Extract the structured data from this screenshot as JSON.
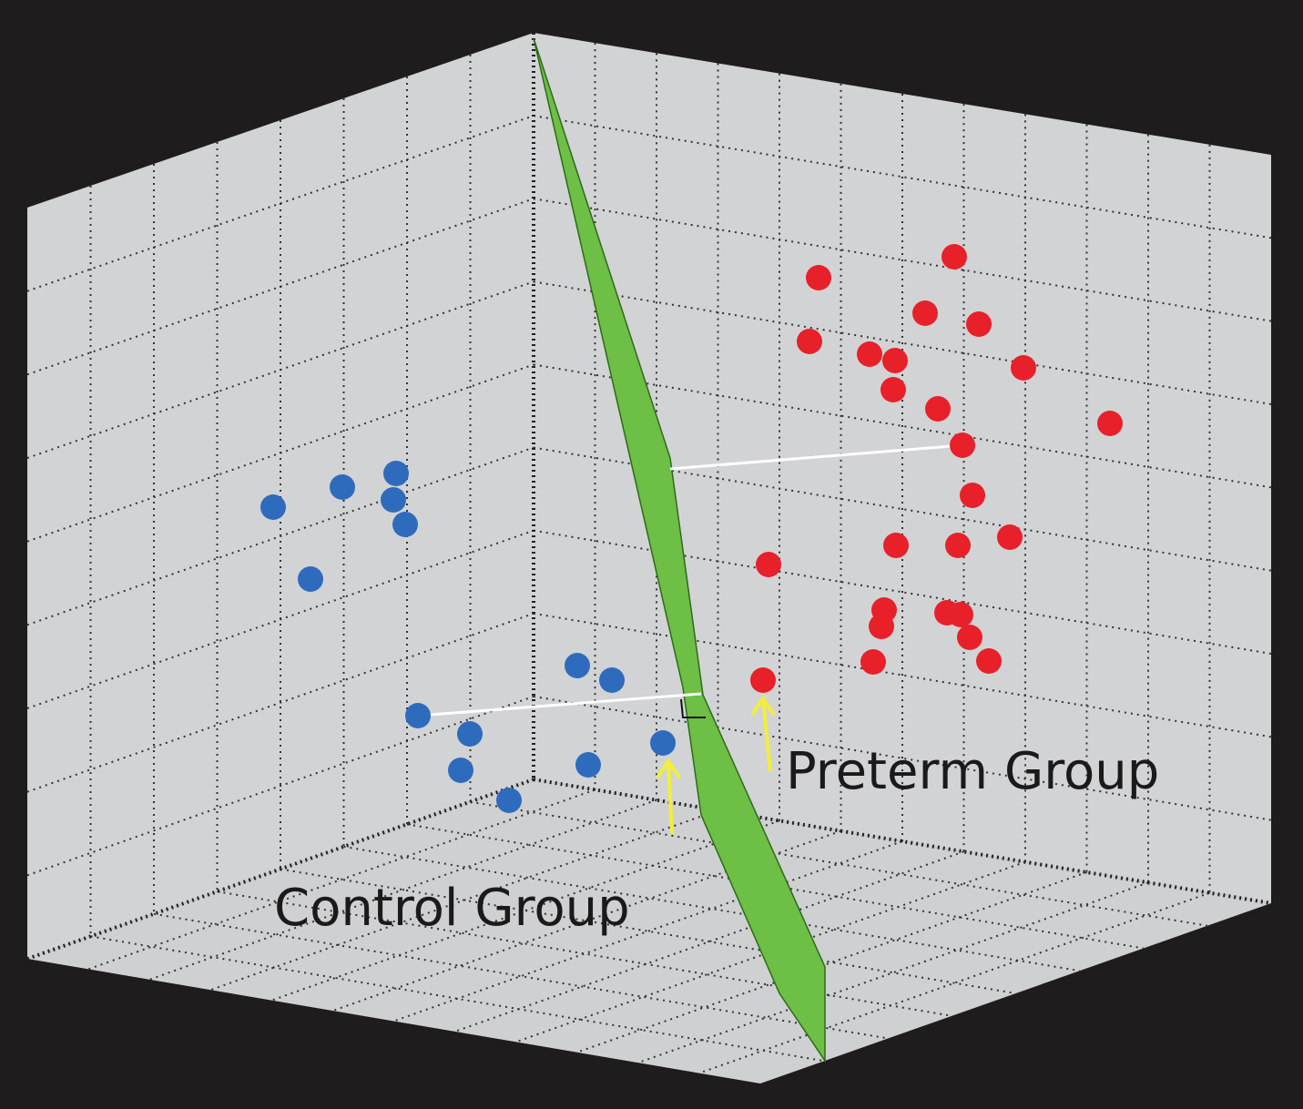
{
  "colors": {
    "background": "#1f1c1d",
    "wall": "#d2d3d5",
    "floor": "#cfd0d2",
    "control_points": "#2f6bbd",
    "preterm_points": "#e8202a",
    "hyperplane": "#6dbf45",
    "margin_lines": "#ffffff",
    "arrows": "#f2ee3a"
  },
  "chart_data": {
    "type": "scatter",
    "title": "",
    "annotations": [
      "Preterm Group",
      "Control Group"
    ],
    "series": [
      {
        "name": "Control Group",
        "color": "#2f6bbd",
        "points": [
          [
            300,
            557
          ],
          [
            376,
            535
          ],
          [
            435,
            520
          ],
          [
            432,
            549
          ],
          [
            445,
            576
          ],
          [
            341,
            636
          ],
          [
            634,
            731
          ],
          [
            672,
            747
          ],
          [
            459,
            786
          ],
          [
            516,
            806
          ],
          [
            506,
            846
          ],
          [
            559,
            879
          ],
          [
            646,
            840
          ],
          [
            728,
            816
          ]
        ]
      },
      {
        "name": "Preterm Group",
        "color": "#e8202a",
        "points": [
          [
            1048,
            282
          ],
          [
            899,
            305
          ],
          [
            1016,
            344
          ],
          [
            1075,
            356
          ],
          [
            889,
            375
          ],
          [
            955,
            389
          ],
          [
            983,
            396
          ],
          [
            1124,
            404
          ],
          [
            981,
            428
          ],
          [
            1030,
            449
          ],
          [
            1219,
            465
          ],
          [
            1057,
            489
          ],
          [
            1068,
            544
          ],
          [
            1109,
            590
          ],
          [
            984,
            599
          ],
          [
            1052,
            599
          ],
          [
            844,
            620
          ],
          [
            971,
            670
          ],
          [
            968,
            688
          ],
          [
            1040,
            673
          ],
          [
            1055,
            675
          ],
          [
            1065,
            700
          ],
          [
            959,
            727
          ],
          [
            1086,
            726
          ],
          [
            838,
            747
          ]
        ]
      }
    ],
    "support_vectors": [
      [
        728,
        816
      ],
      [
        838,
        747
      ]
    ],
    "hyperplane": true,
    "grid": true
  }
}
